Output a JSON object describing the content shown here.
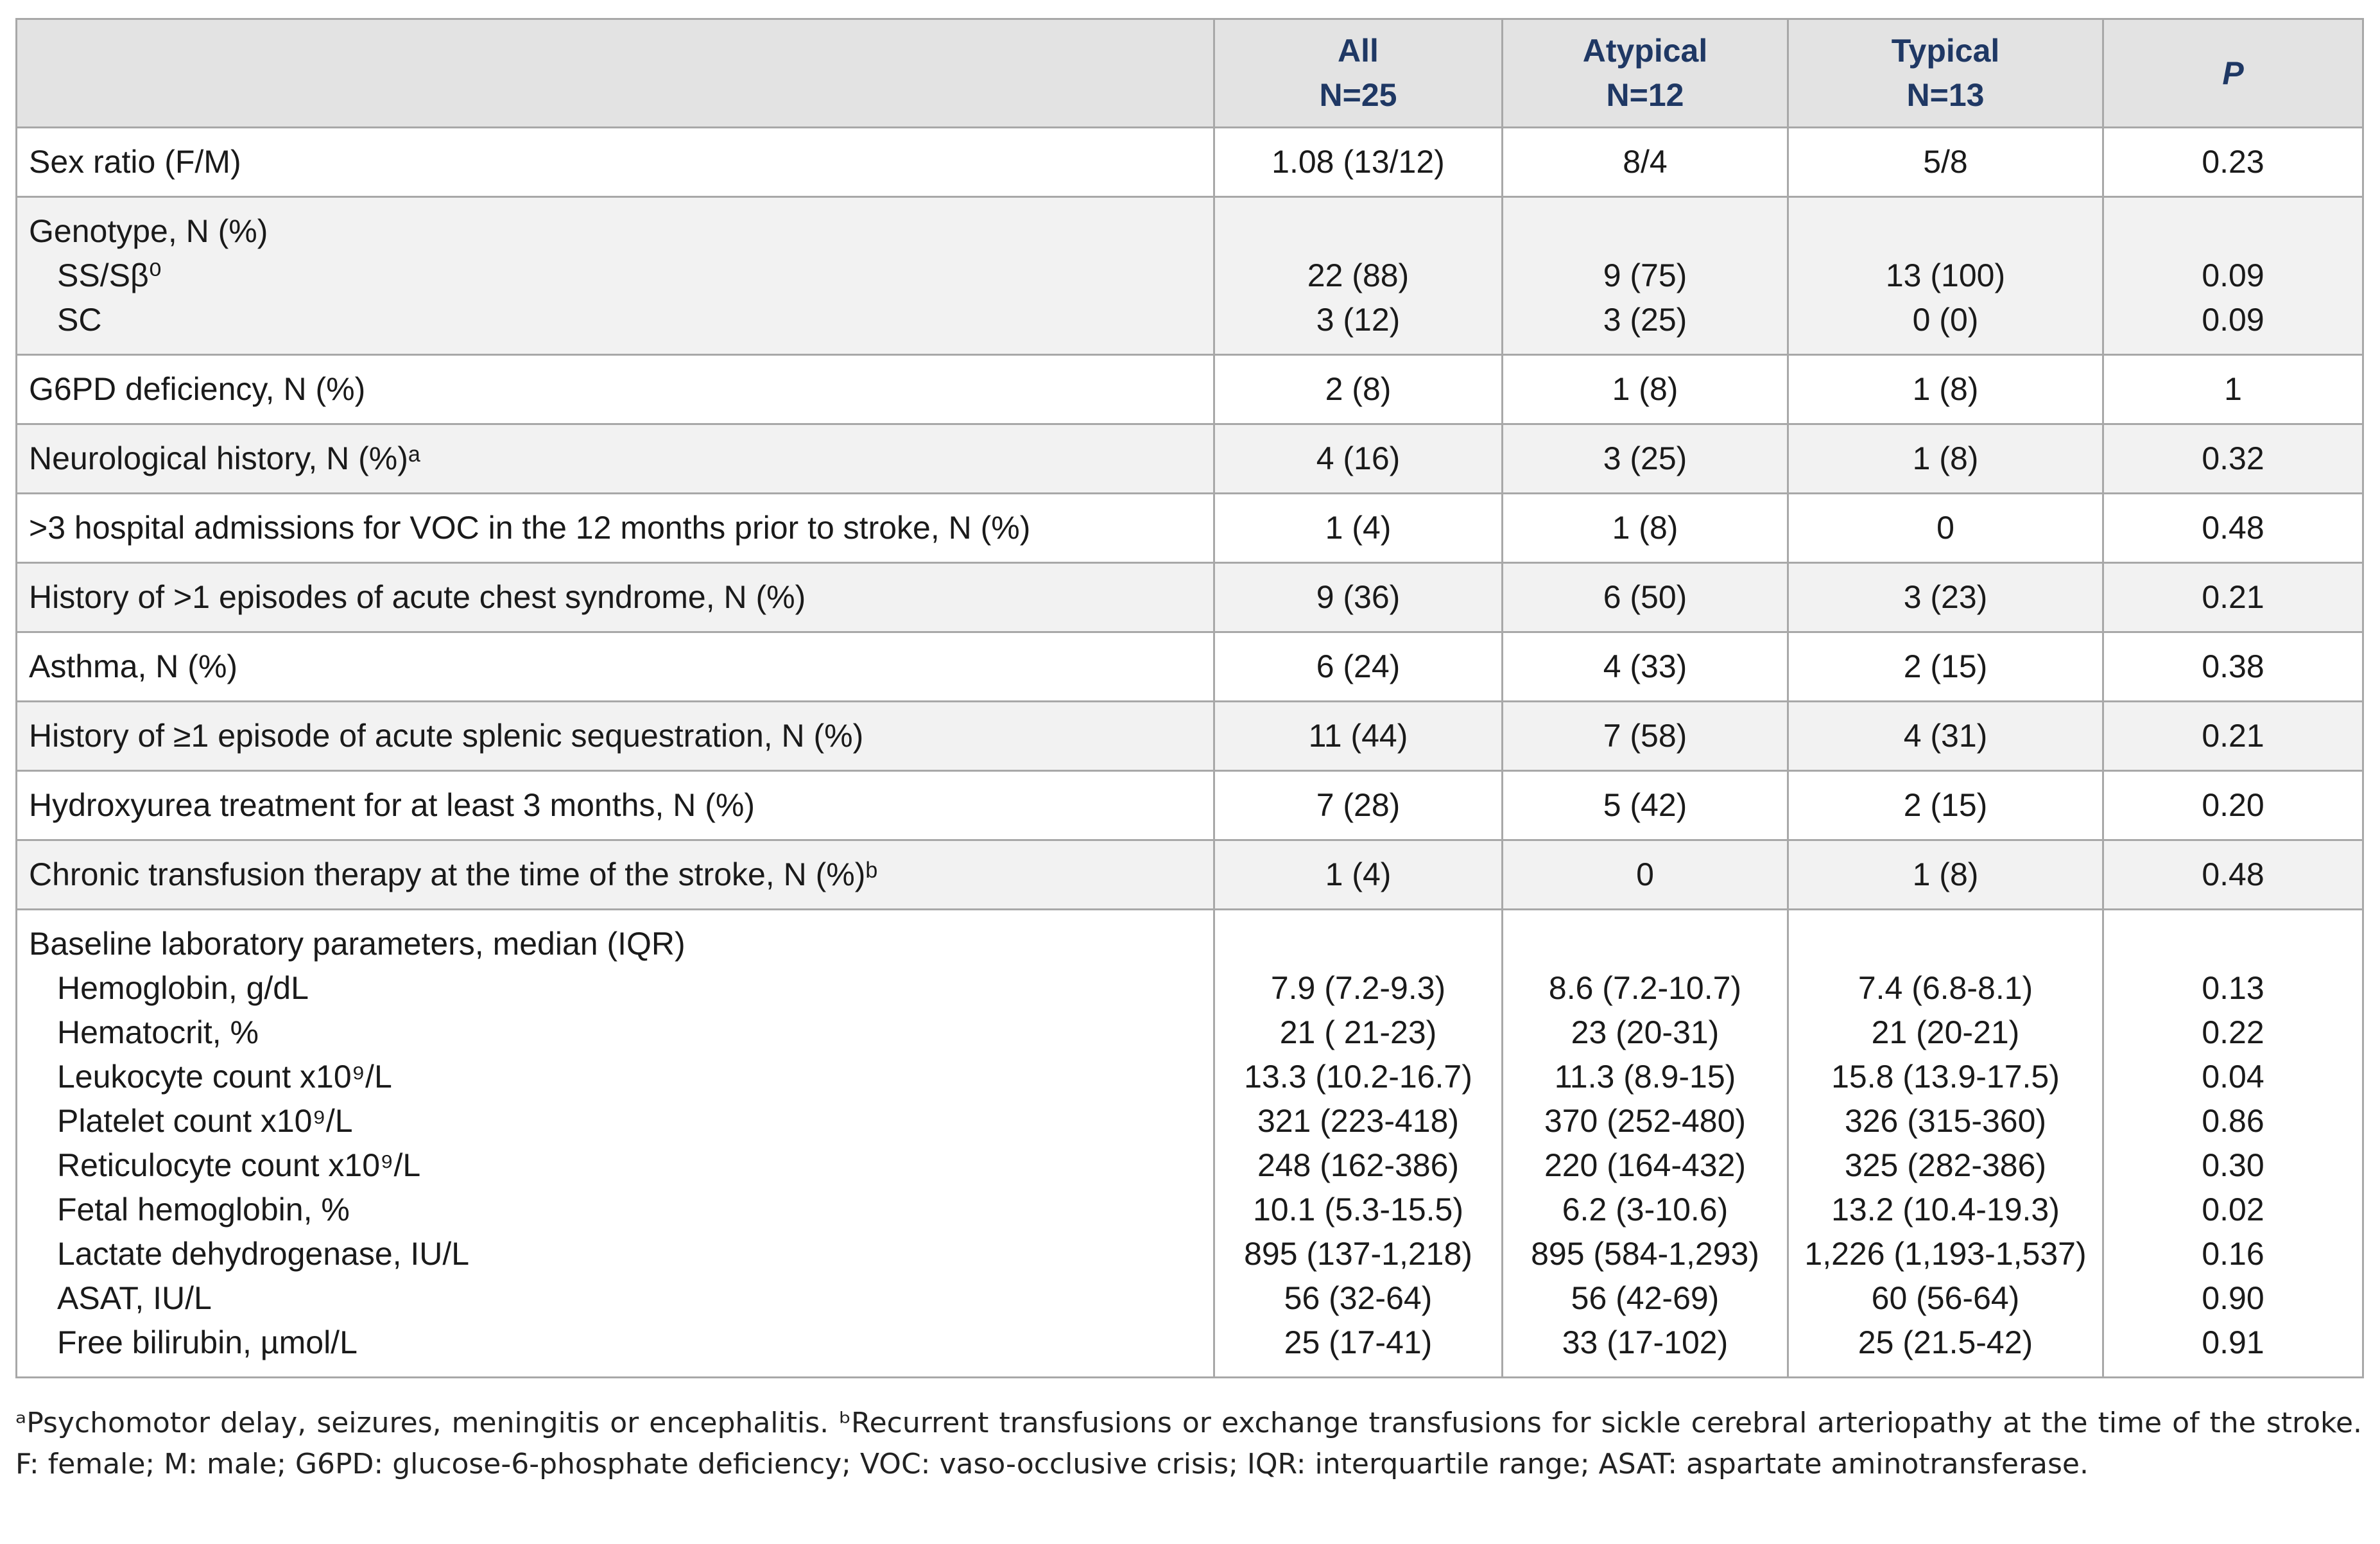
{
  "table": {
    "columns": [
      [
        "All",
        "N=25"
      ],
      [
        "Atypical",
        "N=12"
      ],
      [
        "Typical",
        "N=13"
      ],
      [
        "P"
      ]
    ],
    "rows": [
      {
        "label": "Sex ratio (F/M)",
        "cells": [
          "1.08 (13/12)",
          "8/4",
          "5/8",
          "0.23"
        ]
      },
      {
        "label": "Genotype, N (%)",
        "sub": [
          {
            "label": "SS/Sβ⁰",
            "cells": [
              "22 (88)",
              "9 (75)",
              "13 (100)",
              "0.09"
            ]
          },
          {
            "label": "SC",
            "cells": [
              "3 (12)",
              "3 (25)",
              "0 (0)",
              "0.09"
            ]
          }
        ]
      },
      {
        "label": "G6PD deficiency, N (%)",
        "cells": [
          "2 (8)",
          "1 (8)",
          "1 (8)",
          "1"
        ]
      },
      {
        "label": "Neurological history, N (%)ᵃ",
        "cells": [
          "4 (16)",
          "3 (25)",
          "1 (8)",
          "0.32"
        ]
      },
      {
        "label": ">3 hospital admissions for VOC in the 12 months prior to stroke, N (%)",
        "cells": [
          "1 (4)",
          "1 (8)",
          "0",
          "0.48"
        ]
      },
      {
        "label": "History of >1 episodes of acute chest syndrome, N (%)",
        "cells": [
          "9 (36)",
          "6 (50)",
          "3 (23)",
          "0.21"
        ]
      },
      {
        "label": "Asthma, N (%)",
        "cells": [
          "6 (24)",
          "4 (33)",
          "2 (15)",
          "0.38"
        ]
      },
      {
        "label": "History of ≥1 episode of acute splenic sequestration, N (%)",
        "cells": [
          "11 (44)",
          "7 (58)",
          "4 (31)",
          "0.21"
        ]
      },
      {
        "label": "Hydroxyurea treatment for at least 3 months, N (%)",
        "cells": [
          "7 (28)",
          "5 (42)",
          "2 (15)",
          "0.20"
        ]
      },
      {
        "label": "Chronic transfusion therapy at the time of the stroke, N (%)ᵇ",
        "cells": [
          "1 (4)",
          "0",
          "1 (8)",
          "0.48"
        ]
      },
      {
        "label": "Baseline laboratory parameters, median (IQR)",
        "sub": [
          {
            "label": "Hemoglobin, g/dL",
            "cells": [
              "7.9 (7.2-9.3)",
              "8.6 (7.2-10.7)",
              "7.4 (6.8-8.1)",
              "0.13"
            ]
          },
          {
            "label": "Hematocrit, %",
            "cells": [
              "21 ( 21-23)",
              "23 (20-31)",
              "21 (20-21)",
              "0.22"
            ]
          },
          {
            "label": "Leukocyte count x10⁹/L",
            "cells": [
              "13.3 (10.2-16.7)",
              "11.3 (8.9-15)",
              "15.8 (13.9-17.5)",
              "0.04"
            ]
          },
          {
            "label": "Platelet count x10⁹/L",
            "cells": [
              "321 (223-418)",
              "370 (252-480)",
              "326 (315-360)",
              "0.86"
            ]
          },
          {
            "label": "Reticulocyte count x10⁹/L",
            "cells": [
              "248 (162-386)",
              "220 (164-432)",
              "325 (282-386)",
              "0.30"
            ]
          },
          {
            "label": "Fetal hemoglobin, %",
            "cells": [
              "10.1 (5.3-15.5)",
              "6.2 (3-10.6)",
              "13.2 (10.4-19.3)",
              "0.02"
            ]
          },
          {
            "label": "Lactate dehydrogenase, IU/L",
            "cells": [
              "895 (137-1,218)",
              "895 (584-1,293)",
              "1,226 (1,193-1,537)",
              "0.16"
            ]
          },
          {
            "label": "ASAT, IU/L",
            "cells": [
              "56 (32-64)",
              "56 (42-69)",
              "60 (56-64)",
              "0.90"
            ]
          },
          {
            "label": "Free bilirubin, µmol/L",
            "cells": [
              "25 (17-41)",
              "33 (17-102)",
              "25 (21.5-42)",
              "0.91"
            ]
          }
        ]
      }
    ]
  },
  "footnote": "ᵃPsychomotor delay, seizures, meningitis or encephalitis. ᵇRecurrent transfusions or exchange transfusions for sickle cerebral arteriopathy at the time of the stroke. F: female; M: male; G6PD: glucose-6-phosphate deficiency; VOC: vaso-occlusive crisis; IQR: interquartile range; ASAT: aspartate aminotransferase."
}
